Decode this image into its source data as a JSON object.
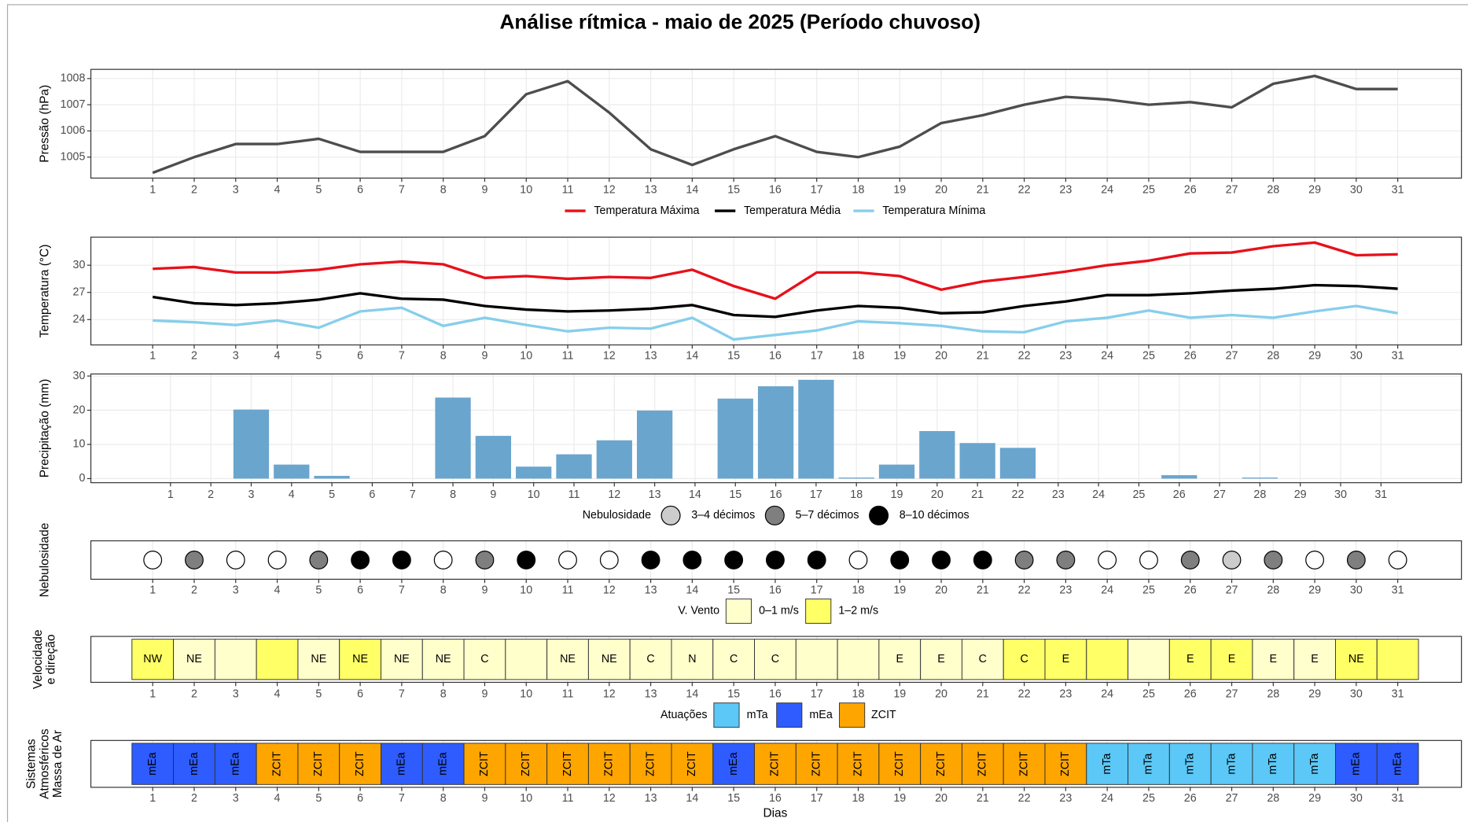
{
  "title": "Análise rítmica - maio de 2025 (Período chuvoso)",
  "chart_data": [
    {
      "type": "line",
      "ylabel": "Pressão (hPa)",
      "categories": [
        1,
        2,
        3,
        4,
        5,
        6,
        7,
        8,
        9,
        10,
        11,
        12,
        13,
        14,
        15,
        16,
        17,
        18,
        19,
        20,
        21,
        22,
        23,
        24,
        25,
        26,
        27,
        28,
        29,
        30,
        31
      ],
      "values": [
        1004.4,
        1005.0,
        1005.5,
        1005.5,
        1005.7,
        1005.2,
        1005.2,
        1005.2,
        1005.8,
        1007.4,
        1007.9,
        1006.7,
        1005.3,
        1004.7,
        1005.3,
        1005.8,
        1005.2,
        1005.0,
        1005.4,
        1006.3,
        1006.6,
        1007.0,
        1007.3,
        1007.2,
        1007.0,
        1007.1,
        1006.9,
        1007.8,
        1008.1,
        1007.6,
        1007.6
      ],
      "color": "#4d4d4d",
      "ylim": [
        1004.2,
        1008.35
      ],
      "yticks": [
        1005,
        1006,
        1007,
        1008
      ],
      "grid": true
    },
    {
      "type": "line",
      "ylabel": "Temperatura (°C)",
      "categories": [
        1,
        2,
        3,
        4,
        5,
        6,
        7,
        8,
        9,
        10,
        11,
        12,
        13,
        14,
        15,
        16,
        17,
        18,
        19,
        20,
        21,
        22,
        23,
        24,
        25,
        26,
        27,
        28,
        29,
        30,
        31
      ],
      "series": [
        {
          "name": "Temperatura Máxima",
          "color": "#e8101a",
          "values": [
            29.6,
            29.8,
            29.2,
            29.2,
            29.5,
            30.1,
            30.4,
            30.1,
            28.6,
            28.8,
            28.5,
            28.7,
            28.6,
            29.5,
            27.7,
            26.3,
            29.2,
            29.2,
            28.8,
            27.3,
            28.2,
            28.7,
            29.3,
            30.0,
            30.5,
            31.3,
            31.4,
            32.1,
            32.5,
            31.1,
            31.2
          ]
        },
        {
          "name": "Temperatura Média",
          "color": "#000000",
          "values": [
            26.5,
            25.8,
            25.6,
            25.8,
            26.2,
            26.9,
            26.3,
            26.2,
            25.5,
            25.1,
            24.9,
            25.0,
            25.2,
            25.6,
            24.5,
            24.3,
            25.0,
            25.5,
            25.3,
            24.7,
            24.8,
            25.5,
            26.0,
            26.7,
            26.7,
            26.9,
            27.2,
            27.4,
            27.8,
            27.7,
            27.4
          ]
        },
        {
          "name": "Temperatura Mínima",
          "color": "#87ceeb",
          "values": [
            23.9,
            23.7,
            23.4,
            23.9,
            23.1,
            24.9,
            25.3,
            23.3,
            24.2,
            23.4,
            22.7,
            23.1,
            23.0,
            24.2,
            21.8,
            22.3,
            22.8,
            23.8,
            23.6,
            23.3,
            22.7,
            22.6,
            23.8,
            24.2,
            25.0,
            24.2,
            24.5,
            24.2,
            24.9,
            25.5,
            24.7
          ]
        }
      ],
      "ylim": [
        21.2,
        33.1
      ],
      "yticks": [
        24,
        27,
        30
      ],
      "grid": true,
      "legend": "top"
    },
    {
      "type": "bar",
      "ylabel": "Precipitação (mm)",
      "categories": [
        1,
        2,
        3,
        4,
        5,
        6,
        7,
        8,
        9,
        10,
        11,
        12,
        13,
        14,
        15,
        16,
        17,
        18,
        19,
        20,
        21,
        22,
        23,
        24,
        25,
        26,
        27,
        28,
        29,
        30,
        31
      ],
      "values": [
        0,
        0,
        20.2,
        4.1,
        0.8,
        0,
        0,
        23.7,
        12.5,
        3.5,
        7.1,
        11.2,
        19.9,
        0,
        23.4,
        27.0,
        28.9,
        0.3,
        4.1,
        13.9,
        10.4,
        9.0,
        0,
        0,
        0,
        1.0,
        0,
        0.3,
        0,
        0,
        0
      ],
      "color": "#6aa5cd",
      "ylim": [
        -1.2,
        30.6
      ],
      "yticks": [
        0,
        10,
        20,
        30
      ],
      "grid": true
    },
    {
      "type": "dots",
      "ylabel": "Nebulosidade",
      "legend_title": "Nebulosidade",
      "categories": [
        1,
        2,
        3,
        4,
        5,
        6,
        7,
        8,
        9,
        10,
        11,
        12,
        13,
        14,
        15,
        16,
        17,
        18,
        19,
        20,
        21,
        22,
        23,
        24,
        25,
        26,
        27,
        28,
        29,
        30,
        31
      ],
      "classes": [
        {
          "name": "3–4 décimos",
          "color": "#cccccc"
        },
        {
          "name": "5–7 décimos",
          "color": "#7f7f7f"
        },
        {
          "name": "8–10 décimos",
          "color": "#000000"
        }
      ],
      "values": [
        null,
        "5–7 décimos",
        null,
        null,
        "5–7 décimos",
        "8–10 décimos",
        "8–10 décimos",
        null,
        "5–7 décimos",
        "8–10 décimos",
        null,
        null,
        "8–10 décimos",
        "8–10 décimos",
        "8–10 décimos",
        "8–10 décimos",
        "8–10 décimos",
        null,
        "8–10 décimos",
        "8–10 décimos",
        "8–10 décimos",
        "5–7 décimos",
        "5–7 décimos",
        null,
        null,
        "5–7 décimos",
        "3–4 décimos",
        "5–7 décimos",
        null,
        "5–7 décimos",
        null
      ],
      "grid": true
    },
    {
      "type": "tile",
      "ylabel": [
        "Velocidade",
        "e direção"
      ],
      "legend_title": "V. Vento",
      "categories": [
        1,
        2,
        3,
        4,
        5,
        6,
        7,
        8,
        9,
        10,
        11,
        12,
        13,
        14,
        15,
        16,
        17,
        18,
        19,
        20,
        21,
        22,
        23,
        24,
        25,
        26,
        27,
        28,
        29,
        30,
        31
      ],
      "classes": [
        {
          "name": "0–1 m/s",
          "color": "#ffffcc"
        },
        {
          "name": "1–2 m/s",
          "color": "#ffff66"
        }
      ],
      "values": [
        "1–2 m/s",
        "0–1 m/s",
        "0–1 m/s",
        "1–2 m/s",
        "0–1 m/s",
        "1–2 m/s",
        "0–1 m/s",
        "0–1 m/s",
        "0–1 m/s",
        "0–1 m/s",
        "0–1 m/s",
        "0–1 m/s",
        "0–1 m/s",
        "0–1 m/s",
        "0–1 m/s",
        "0–1 m/s",
        "0–1 m/s",
        "0–1 m/s",
        "0–1 m/s",
        "0–1 m/s",
        "0–1 m/s",
        "1–2 m/s",
        "1–2 m/s",
        "1–2 m/s",
        "0–1 m/s",
        "1–2 m/s",
        "1–2 m/s",
        "0–1 m/s",
        "0–1 m/s",
        "1–2 m/s",
        "1–2 m/s"
      ],
      "labels": [
        "NW",
        "NE",
        null,
        null,
        "NE",
        "NE",
        "NE",
        "NE",
        "C",
        null,
        "NE",
        "NE",
        "C",
        "N",
        "C",
        "C",
        null,
        null,
        "E",
        "E",
        "C",
        "C",
        "E",
        null,
        null,
        "E",
        "E",
        "E",
        "E",
        "NE",
        null
      ],
      "grid": true
    },
    {
      "type": "tile",
      "ylabel": [
        "Sistemas",
        "Atmosféricos",
        "Massa de Ar"
      ],
      "legend_title": "Atuações",
      "xlabel": "Dias",
      "rotate_labels": true,
      "categories": [
        1,
        2,
        3,
        4,
        5,
        6,
        7,
        8,
        9,
        10,
        11,
        12,
        13,
        14,
        15,
        16,
        17,
        18,
        19,
        20,
        21,
        22,
        23,
        24,
        25,
        26,
        27,
        28,
        29,
        30,
        31
      ],
      "classes": [
        {
          "name": "mTa",
          "color": "#5bc8f7"
        },
        {
          "name": "mEa",
          "color": "#2e5cff"
        },
        {
          "name": "ZCIT",
          "color": "#ffa500"
        }
      ],
      "values": [
        "mEa",
        "mEa",
        "mEa",
        "ZCIT",
        "ZCIT",
        "ZCIT",
        "mEa",
        "mEa",
        "ZCIT",
        "ZCIT",
        "ZCIT",
        "ZCIT",
        "ZCIT",
        "ZCIT",
        "mEa",
        "ZCIT",
        "ZCIT",
        "ZCIT",
        "ZCIT",
        "ZCIT",
        "ZCIT",
        "ZCIT",
        "ZCIT",
        "mTa",
        "mTa",
        "mTa",
        "mTa",
        "mTa",
        "mTa",
        "mEa",
        "mEa"
      ],
      "grid": true
    }
  ]
}
